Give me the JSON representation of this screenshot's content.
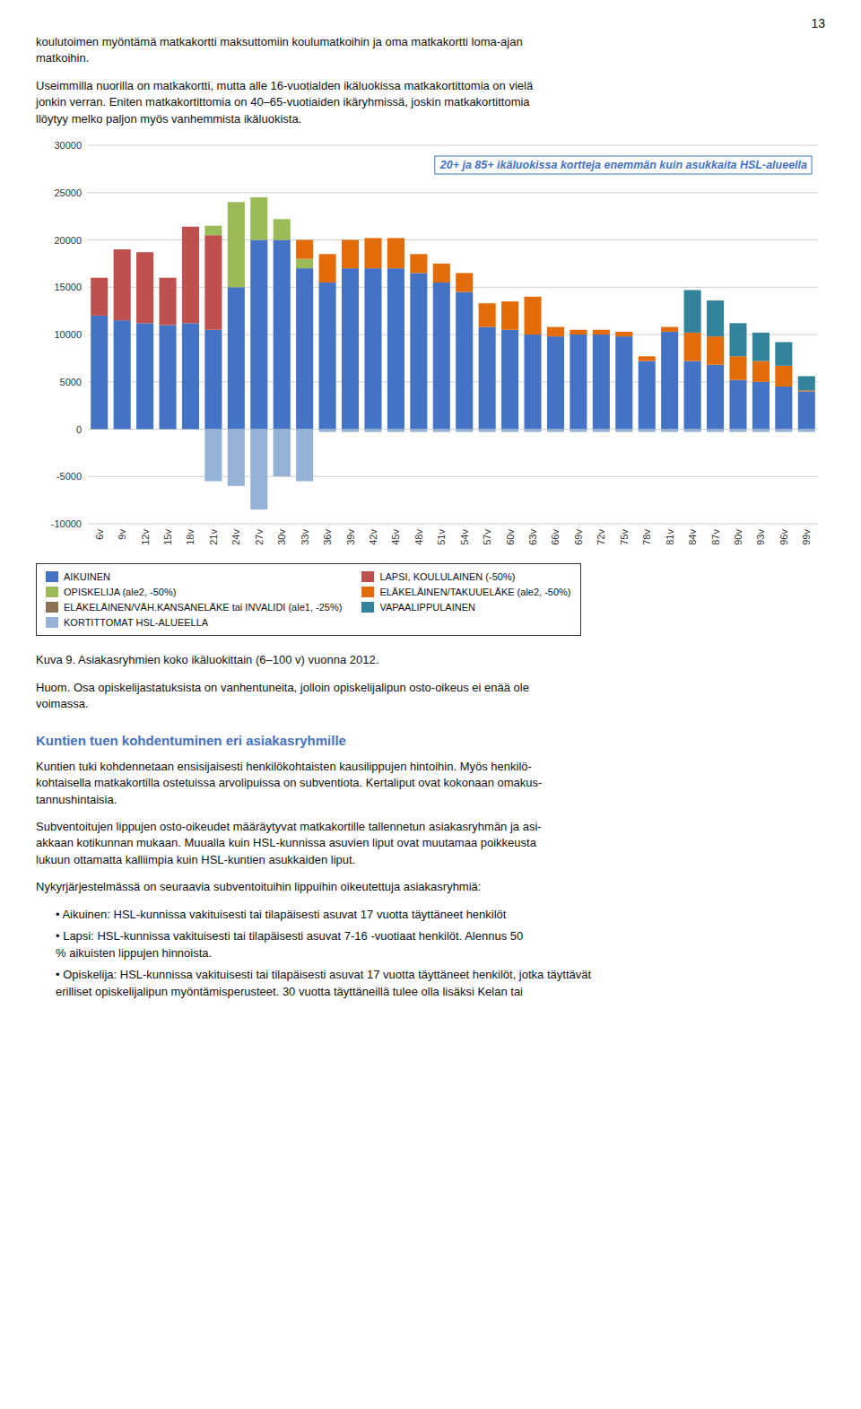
{
  "page": {
    "number": "13",
    "top_text": [
      "koulutoimen myöntämä matkakortti maksuttomiin koulumatkoihin ja oma matkakortti loma-ajan\nmatkoihin.",
      "Useimmilla nuorilla on matkakortti, mutta alle 16-vuotialden ikäluokissa matkakortittomia on vielä\njonkin verran. Eniten matkakortittomia on 40–65-vuotiaiden ikäryhmissä, joskin matkakortittomia\nllöytyy melko paljon myös vanhemmista ikäluokista."
    ],
    "caption": "Kuva 9. Asiakasryhmien koko ikäluokittain (6–100 v) vuonna 2012.",
    "note": "Huom. Osa opiskelijastatuksista on vanhentuneita, jolloin opiskelijalipun osto-oikeus ei enää ole\nvoimassa.",
    "section_header": "Kuntien tuen kohdentuminen eri asiakasryhmille",
    "paragraphs": [
      "Kuntien tuki kohdennetaan ensisijaisesti henkilökohtaisten kausilippujen hintoihin. Myös henkilö-\nkohtaisella matkakortilla ostetuissa arvolipuissa on subventiota. Kertaliput ovat kokonaan omakus-\ntannushintaisia.",
      "Subventoitujen lippujen osto-oikeudet määräytyvat matkakortille tallennetun asiakasryhmän ja asi-\nakkaan kotikunnan mukaan. Muualla kuin HSL-kunnissa asuvien liput ovat muutamaa poikkeusta\nlukuun ottamatta kalliimpia kuin HSL-kuntien asukkaiden liput.",
      "Nykyrjärjestelmässä on seuraavia subventoituihin lippuihin oikeutettuja asiakasryhmiä:"
    ],
    "bullets": [
      "• Aikuinen: HSL-kunnissa vakituisesti tai tilapäisesti asuvat 17 vuotta täyttäneet henkilöt",
      "• Lapsi: HSL-kunnissa vakituisesti tai tilapäisesti asuvat 7-16 -vuotiaat henkilöt. Alennus 50\n% aikuisten lippujen hinnoista.",
      "• Opiskelija: HSL-kunnissa vakituisesti tai tilapäisesti asuvat 17 vuotta täyttäneet henkilöt, jotka täyttävät\nerilliset opiskelijalipun myöntämisperusteet. 30 vuotta täyttäneillä tulee olla lisäksi Kelan tai"
    ]
  },
  "chart_data": {
    "type": "bar",
    "stacked": true,
    "grid": true,
    "legend": "bottom",
    "annotation": "20+ ja 85+ ikäluokissa kortteja enemmän kuin asukkaita HSL-alueella",
    "categories": [
      "6v",
      "9v",
      "12v",
      "15v",
      "18v",
      "21v",
      "24v",
      "27v",
      "30v",
      "33v",
      "36v",
      "39v",
      "42v",
      "45v",
      "48v",
      "51v",
      "54v",
      "57v",
      "60v",
      "63v",
      "66v",
      "69v",
      "72v",
      "75v",
      "78v",
      "81v",
      "84v",
      "87v",
      "90v",
      "93v",
      "96v",
      "99v"
    ],
    "series": [
      {
        "name": "AIKUINEN",
        "color": "#4472C4",
        "values": [
          12000,
          11500,
          11200,
          11000,
          11200,
          10500,
          15000,
          20000,
          20000,
          17000,
          15500,
          17000,
          17000,
          17000,
          16500,
          15500,
          14500,
          10800,
          10500,
          10000,
          9800,
          10000,
          10000,
          9800,
          7200,
          10300,
          7200,
          6800,
          5200,
          5000,
          4500,
          4000
        ]
      },
      {
        "name": "LAPSI, KOULULAINEN (-50%)",
        "color": "#C0504D",
        "values": [
          4000,
          7500,
          7500,
          5000,
          10200,
          10000,
          0,
          0,
          0,
          0,
          0,
          0,
          0,
          0,
          0,
          0,
          0,
          0,
          0,
          0,
          0,
          0,
          0,
          0,
          0,
          0,
          0,
          0,
          0,
          0,
          0,
          0
        ]
      },
      {
        "name": "OPISKELIJA (ale2, -50%)",
        "color": "#9BBB59",
        "values": [
          0,
          0,
          0,
          0,
          0,
          1000,
          9000,
          4500,
          2200,
          1000,
          0,
          0,
          0,
          0,
          0,
          0,
          0,
          0,
          0,
          0,
          0,
          0,
          0,
          0,
          0,
          0,
          0,
          0,
          0,
          0,
          0,
          0
        ]
      },
      {
        "name": "ELÄKELÄINEN/TAKUUELÄKE (ale2, -50%)",
        "color": "#E36C09",
        "values": [
          0,
          0,
          0,
          0,
          0,
          0,
          0,
          0,
          0,
          2000,
          3000,
          3000,
          3200,
          3200,
          2000,
          2000,
          2000,
          2500,
          3000,
          4000,
          1000,
          500,
          500,
          500,
          500,
          500,
          3000,
          3000,
          2500,
          2200,
          2200,
          100
        ]
      },
      {
        "name": "ELÄKELÄINEN/VÄH.KANSANELÄKE tai INVALIDI (ale1, -25%)",
        "color": "#8B7355",
        "values": [
          0,
          0,
          0,
          0,
          0,
          0,
          0,
          0,
          0,
          0,
          0,
          0,
          0,
          0,
          0,
          0,
          0,
          0,
          0,
          0,
          0,
          0,
          0,
          0,
          0,
          0,
          0,
          0,
          0,
          0,
          0,
          0
        ]
      },
      {
        "name": "VAPAALIPPULAINEN",
        "color": "#31849B",
        "values": [
          0,
          0,
          0,
          0,
          0,
          0,
          0,
          0,
          0,
          0,
          0,
          0,
          0,
          0,
          0,
          0,
          0,
          0,
          0,
          0,
          0,
          0,
          0,
          0,
          0,
          0,
          4500,
          3800,
          3500,
          3000,
          2500,
          1500
        ]
      },
      {
        "name": "KORTITTOMAT HSL-ALUEELLA",
        "color": "#95B3D7",
        "values": [
          0,
          0,
          0,
          0,
          0,
          -5500,
          -6000,
          -8500,
          -5000,
          -5500,
          -300,
          -300,
          -300,
          -300,
          -300,
          -300,
          -300,
          -300,
          -300,
          -300,
          -300,
          -300,
          -300,
          -300,
          -300,
          -300,
          -300,
          -300,
          -300,
          -300,
          -300,
          -300
        ]
      }
    ],
    "ylim": [
      -10000,
      30000
    ],
    "yticks": [
      -10000,
      -5000,
      0,
      5000,
      10000,
      15000,
      20000,
      25000,
      30000
    ]
  }
}
